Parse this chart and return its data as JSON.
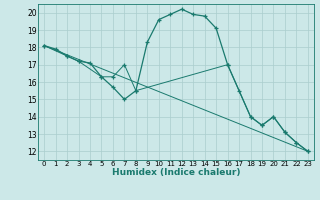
{
  "title": "",
  "xlabel": "Humidex (Indice chaleur)",
  "ylabel": "",
  "xlim": [
    -0.5,
    23.5
  ],
  "ylim": [
    11.5,
    20.5
  ],
  "xticks": [
    0,
    1,
    2,
    3,
    4,
    5,
    6,
    7,
    8,
    9,
    10,
    11,
    12,
    13,
    14,
    15,
    16,
    17,
    18,
    19,
    20,
    21,
    22,
    23
  ],
  "yticks": [
    12,
    13,
    14,
    15,
    16,
    17,
    18,
    19,
    20
  ],
  "bg_color": "#cce8e8",
  "line_color": "#1a7a6e",
  "grid_color": "#aacece",
  "line1_x": [
    0,
    1,
    2,
    3,
    4,
    5,
    6,
    7,
    8,
    9,
    10,
    11,
    12,
    13,
    14,
    15,
    16,
    17,
    18,
    19,
    20,
    21,
    22,
    23
  ],
  "line1_y": [
    18.1,
    17.9,
    17.5,
    17.2,
    17.1,
    16.3,
    15.7,
    15.0,
    15.5,
    18.3,
    19.6,
    19.9,
    20.2,
    19.9,
    19.8,
    19.1,
    17.0,
    15.5,
    14.0,
    13.5,
    14.0,
    13.1,
    12.5,
    12.0
  ],
  "line2_x": [
    0,
    2,
    3,
    5,
    6,
    7,
    8,
    16,
    18,
    19,
    20,
    21,
    22,
    23
  ],
  "line2_y": [
    18.1,
    17.5,
    17.2,
    16.3,
    16.3,
    17.0,
    15.5,
    17.0,
    14.0,
    13.5,
    14.0,
    13.1,
    12.5,
    12.0
  ],
  "line3_x": [
    0,
    23
  ],
  "line3_y": [
    18.1,
    12.0
  ]
}
